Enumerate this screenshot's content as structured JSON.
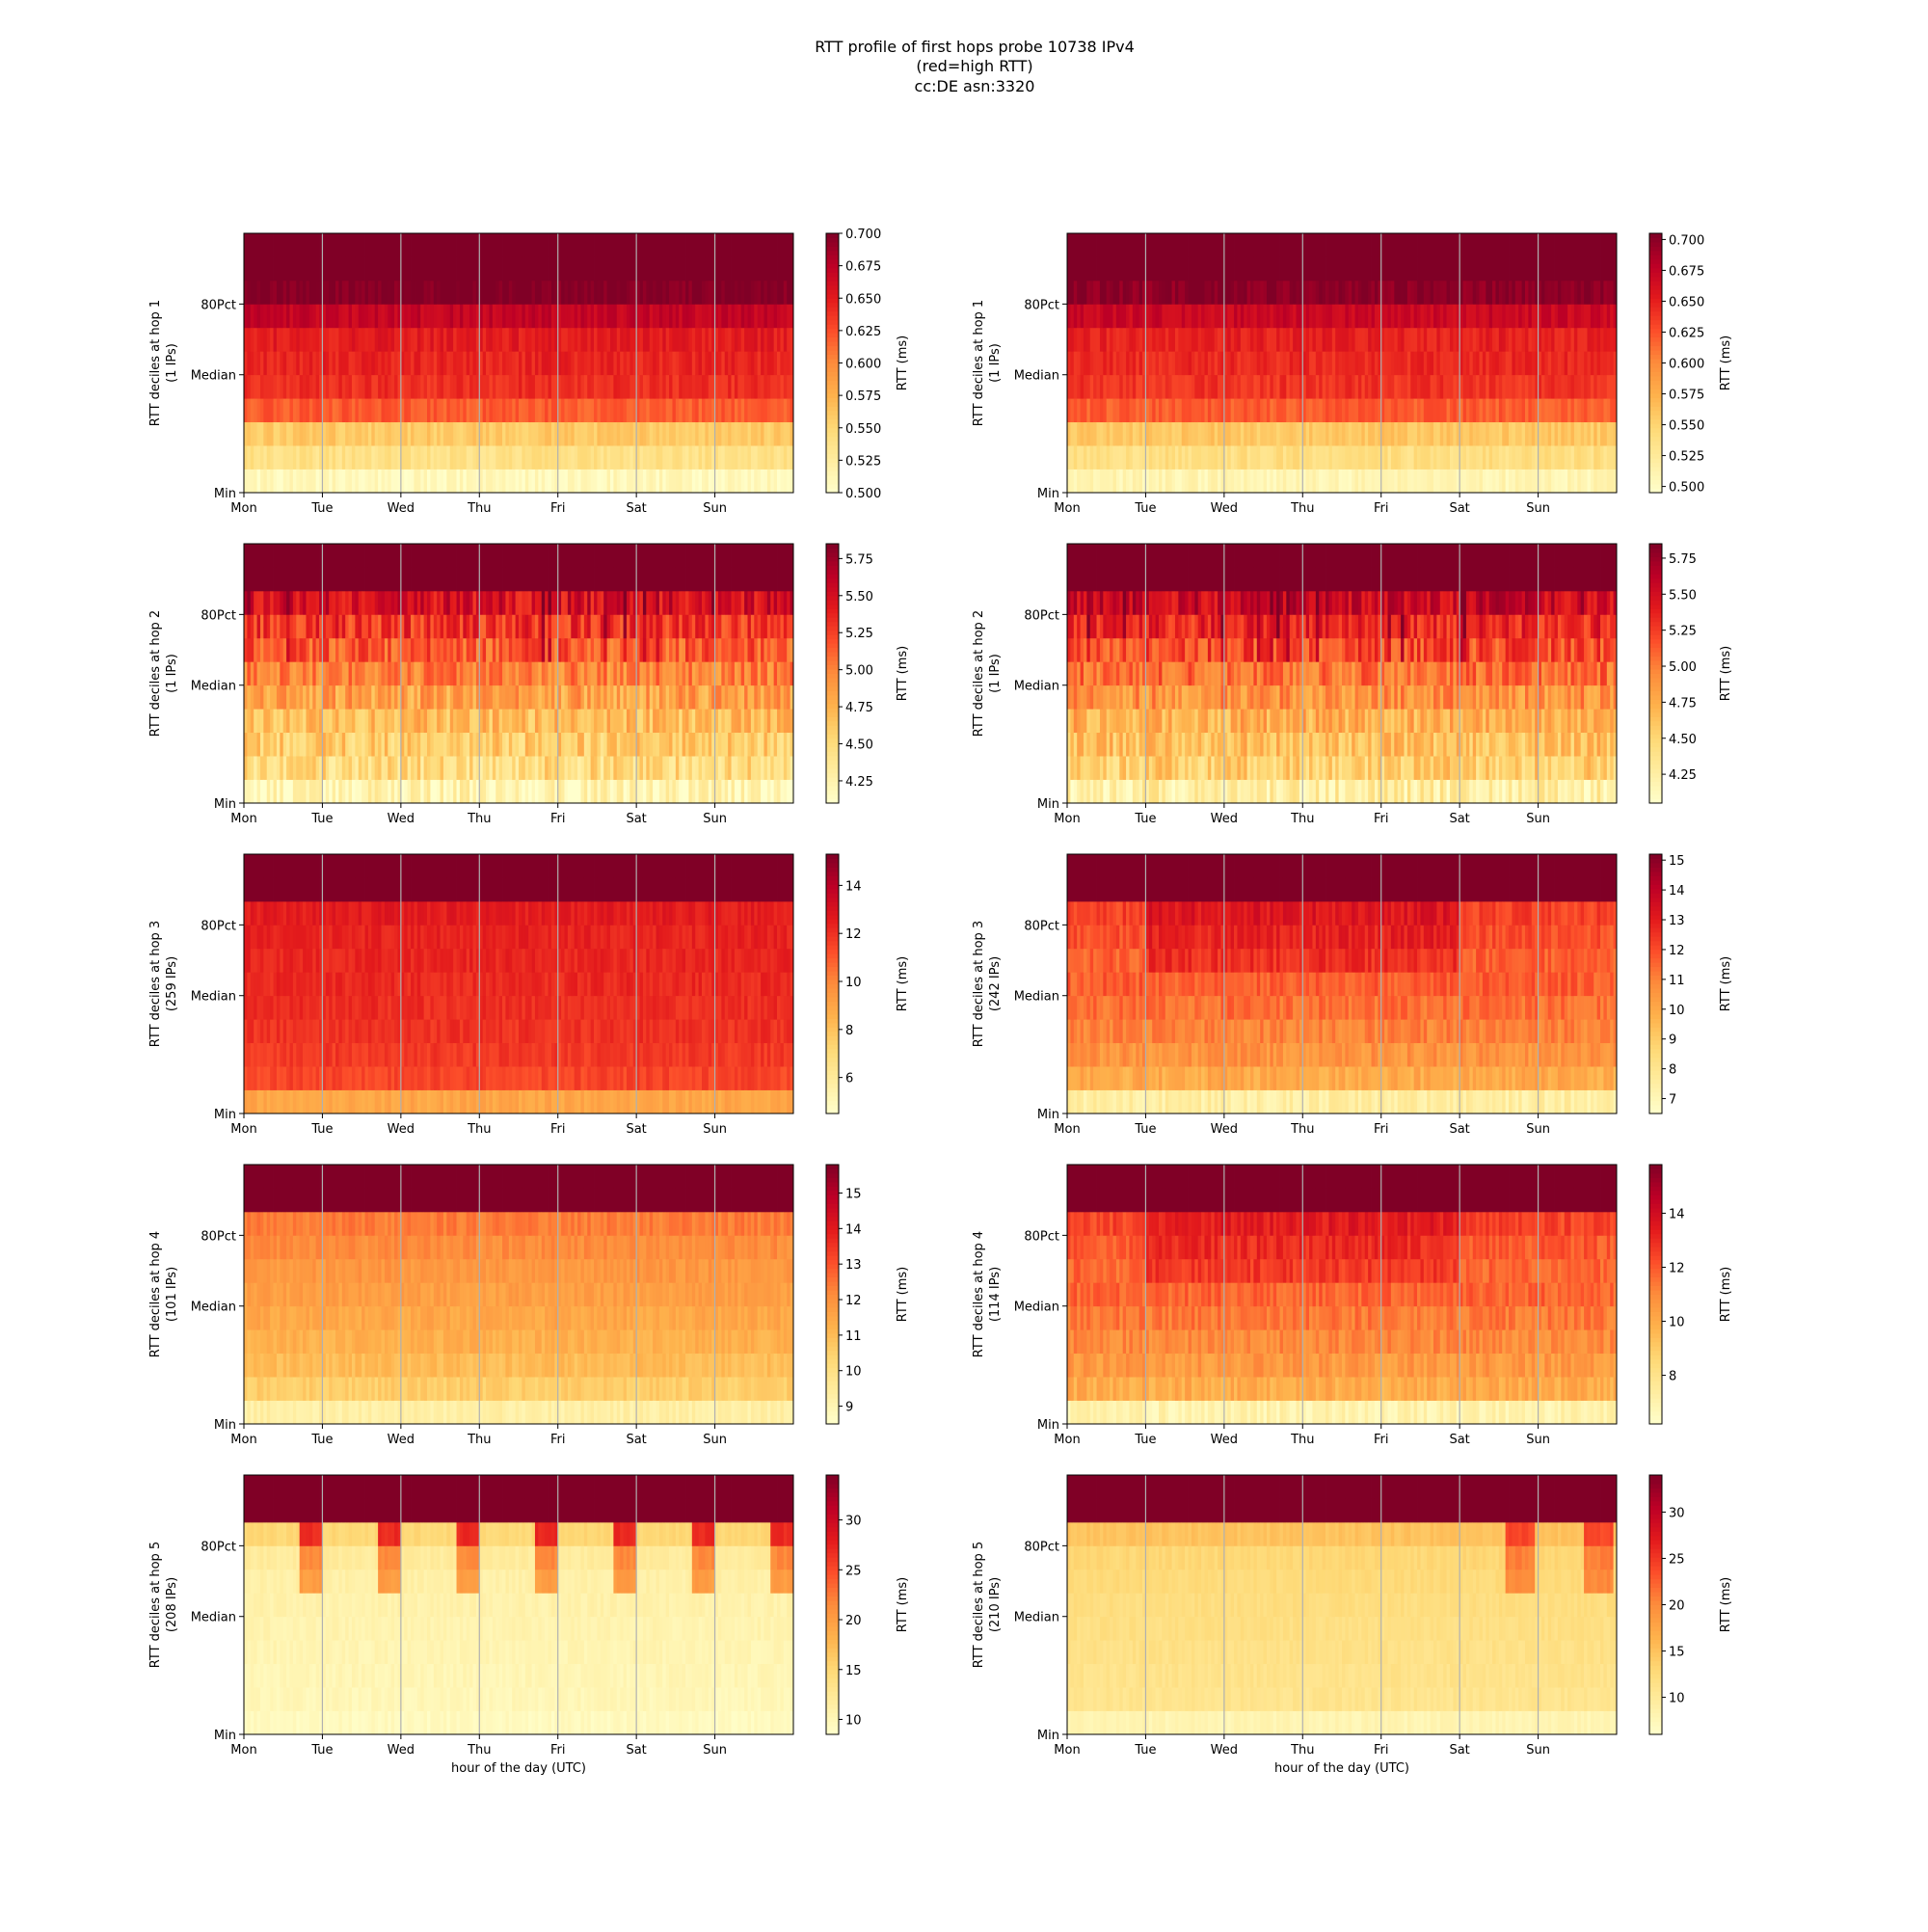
{
  "title_lines": [
    "RTT profile of first hops probe 10738 IPv4",
    "(red=high RTT)",
    "cc:DE asn:3320"
  ],
  "colormap": [
    "#ffffcc",
    "#ffeda0",
    "#fed976",
    "#feb24c",
    "#fd8d3c",
    "#fc4e2a",
    "#e31a1c",
    "#bd0026",
    "#800026"
  ],
  "chart_data": [
    {
      "type": "heatmap",
      "hop": 1,
      "column": "left",
      "ylabel": [
        "RTT deciles at hop 1",
        "(1 IPs)"
      ],
      "xlabel": "",
      "xticks": [
        "Mon",
        "Tue",
        "Wed",
        "Thu",
        "Fri",
        "Sat",
        "Sun"
      ],
      "yticks": [
        "Min",
        "Median",
        "80Pct"
      ],
      "colorbar_label": "RTT (ms)",
      "colorbar_range": [
        0.5,
        0.7
      ],
      "colorbar_ticks": [
        "0.500",
        "0.525",
        "0.550",
        "0.575",
        "0.600",
        "0.625",
        "0.650",
        "0.675",
        "0.700"
      ],
      "decile_values": [
        0.51,
        0.54,
        0.56,
        0.62,
        0.64,
        0.645,
        0.65,
        0.67,
        0.7,
        0.7,
        0.7
      ],
      "noise": 0.1,
      "pattern": "flat",
      "grid": true
    },
    {
      "type": "heatmap",
      "hop": 1,
      "column": "right",
      "ylabel": [
        "RTT deciles at hop 1",
        "(1 IPs)"
      ],
      "xlabel": "",
      "xticks": [
        "Mon",
        "Tue",
        "Wed",
        "Thu",
        "Fri",
        "Sat",
        "Sun"
      ],
      "yticks": [
        "Min",
        "Median",
        "80Pct"
      ],
      "colorbar_label": "RTT (ms)",
      "colorbar_range": [
        0.495,
        0.705
      ],
      "colorbar_ticks": [
        "0.500",
        "0.525",
        "0.550",
        "0.575",
        "0.600",
        "0.625",
        "0.650",
        "0.675",
        "0.700"
      ],
      "decile_values": [
        0.51,
        0.54,
        0.56,
        0.62,
        0.64,
        0.645,
        0.65,
        0.67,
        0.7,
        0.7,
        0.7
      ],
      "noise": 0.1,
      "pattern": "flat",
      "grid": true
    },
    {
      "type": "heatmap",
      "hop": 2,
      "column": "left",
      "ylabel": [
        "RTT deciles at hop 2",
        "(1 IPs)"
      ],
      "xlabel": "",
      "xticks": [
        "Mon",
        "Tue",
        "Wed",
        "Thu",
        "Fri",
        "Sat",
        "Sun"
      ],
      "yticks": [
        "Min",
        "Median",
        "80Pct"
      ],
      "colorbar_label": "RTT (ms)",
      "colorbar_range": [
        4.1,
        5.85
      ],
      "colorbar_ticks": [
        "4.25",
        "4.50",
        "4.75",
        "5.00",
        "5.25",
        "5.50",
        "5.75"
      ],
      "decile_values": [
        4.2,
        4.5,
        4.6,
        4.7,
        4.85,
        5.0,
        5.15,
        5.3,
        5.5,
        5.85,
        5.85
      ],
      "noise": 0.25,
      "pattern": "spikes",
      "grid": true
    },
    {
      "type": "heatmap",
      "hop": 2,
      "column": "right",
      "ylabel": [
        "RTT deciles at hop 2",
        "(1 IPs)"
      ],
      "xlabel": "",
      "xticks": [
        "Mon",
        "Tue",
        "Wed",
        "Thu",
        "Fri",
        "Sat",
        "Sun"
      ],
      "yticks": [
        "Min",
        "Median",
        "80Pct"
      ],
      "colorbar_label": "RTT (ms)",
      "colorbar_range": [
        4.05,
        5.85
      ],
      "colorbar_ticks": [
        "4.25",
        "4.50",
        "4.75",
        "5.00",
        "5.25",
        "5.50",
        "5.75"
      ],
      "decile_values": [
        4.25,
        4.55,
        4.65,
        4.75,
        4.9,
        5.05,
        5.2,
        5.35,
        5.55,
        5.85,
        5.85
      ],
      "noise": 0.25,
      "pattern": "spikes",
      "grid": true
    },
    {
      "type": "heatmap",
      "hop": 3,
      "column": "left",
      "ylabel": [
        "RTT deciles at hop 3",
        "(259 IPs)"
      ],
      "xlabel": "",
      "xticks": [
        "Mon",
        "Tue",
        "Wed",
        "Thu",
        "Fri",
        "Sat",
        "Sun"
      ],
      "yticks": [
        "Min",
        "Median",
        "80Pct"
      ],
      "colorbar_label": "RTT (ms)",
      "colorbar_range": [
        4.5,
        15.3
      ],
      "colorbar_ticks": [
        "6",
        "8",
        "10",
        "12",
        "14"
      ],
      "decile_values": [
        9.0,
        11.5,
        11.8,
        12.0,
        12.1,
        12.2,
        12.3,
        12.4,
        12.6,
        15.3,
        15.3
      ],
      "noise": 0.08,
      "pattern": "flat",
      "grid": true
    },
    {
      "type": "heatmap",
      "hop": 3,
      "column": "right",
      "ylabel": [
        "RTT deciles at hop 3",
        "(242 IPs)"
      ],
      "xlabel": "",
      "xticks": [
        "Mon",
        "Tue",
        "Wed",
        "Thu",
        "Fri",
        "Sat",
        "Sun"
      ],
      "yticks": [
        "Min",
        "Median",
        "80Pct"
      ],
      "colorbar_label": "RTT (ms)",
      "colorbar_range": [
        6.5,
        15.2
      ],
      "colorbar_ticks": [
        "7",
        "8",
        "9",
        "10",
        "11",
        "12",
        "13",
        "14",
        "15"
      ],
      "decile_values": [
        7.5,
        10.0,
        10.6,
        11.0,
        11.4,
        11.7,
        12.0,
        12.3,
        12.6,
        15.2,
        15.2
      ],
      "noise": 0.12,
      "pattern": "weekday",
      "grid": true
    },
    {
      "type": "heatmap",
      "hop": 4,
      "column": "left",
      "ylabel": [
        "RTT deciles at hop 4",
        "(101 IPs)"
      ],
      "xlabel": "",
      "xticks": [
        "Mon",
        "Tue",
        "Wed",
        "Thu",
        "Fri",
        "Sat",
        "Sun"
      ],
      "yticks": [
        "Min",
        "Median",
        "80Pct"
      ],
      "colorbar_label": "RTT (ms)",
      "colorbar_range": [
        8.5,
        15.8
      ],
      "colorbar_ticks": [
        "9",
        "10",
        "11",
        "12",
        "13",
        "14",
        "15"
      ],
      "decile_values": [
        9.3,
        10.6,
        11.0,
        11.3,
        11.5,
        11.7,
        11.9,
        12.1,
        12.4,
        15.8,
        15.8
      ],
      "noise": 0.08,
      "pattern": "flat",
      "grid": true
    },
    {
      "type": "heatmap",
      "hop": 4,
      "column": "right",
      "ylabel": [
        "RTT deciles at hop 4",
        "(114 IPs)"
      ],
      "xlabel": "",
      "xticks": [
        "Mon",
        "Tue",
        "Wed",
        "Thu",
        "Fri",
        "Sat",
        "Sun"
      ],
      "yticks": [
        "Min",
        "Median",
        "80Pct"
      ],
      "colorbar_label": "RTT (ms)",
      "colorbar_range": [
        6.2,
        15.8
      ],
      "colorbar_ticks": [
        "8",
        "10",
        "12",
        "14"
      ],
      "decile_values": [
        7.0,
        10.0,
        10.6,
        11.0,
        11.4,
        11.8,
        12.1,
        12.4,
        12.8,
        15.8,
        15.8
      ],
      "noise": 0.12,
      "pattern": "weekday",
      "grid": true
    },
    {
      "type": "heatmap",
      "hop": 5,
      "column": "left",
      "ylabel": [
        "RTT deciles at hop 5",
        "(208 IPs)"
      ],
      "xlabel": "hour of the day (UTC)",
      "xticks": [
        "Mon",
        "Tue",
        "Wed",
        "Thu",
        "Fri",
        "Sat",
        "Sun"
      ],
      "yticks": [
        "Min",
        "Median",
        "80Pct"
      ],
      "colorbar_label": "RTT (ms)",
      "colorbar_range": [
        8.5,
        34.5
      ],
      "colorbar_ticks": [
        "10",
        "15",
        "20",
        "25",
        "30"
      ],
      "decile_values": [
        9.5,
        10.0,
        10.2,
        10.4,
        10.6,
        10.9,
        11.2,
        12.0,
        15.0,
        22.0,
        34.0
      ],
      "noise": 0.05,
      "pattern": "evening",
      "grid": true
    },
    {
      "type": "heatmap",
      "hop": 5,
      "column": "right",
      "ylabel": [
        "RTT deciles at hop 5",
        "(210 IPs)"
      ],
      "xlabel": "hour of the day (UTC)",
      "xticks": [
        "Mon",
        "Tue",
        "Wed",
        "Thu",
        "Fri",
        "Sat",
        "Sun"
      ],
      "yticks": [
        "Min",
        "Median",
        "80Pct"
      ],
      "colorbar_label": "RTT (ms)",
      "colorbar_range": [
        6.0,
        34.0
      ],
      "colorbar_ticks": [
        "10",
        "15",
        "20",
        "25",
        "30"
      ],
      "decile_values": [
        8.0,
        11.0,
        11.3,
        11.6,
        11.9,
        12.2,
        12.6,
        13.0,
        15.0,
        20.0,
        34.0
      ],
      "noise": 0.05,
      "pattern": "weekend",
      "grid": true
    }
  ]
}
